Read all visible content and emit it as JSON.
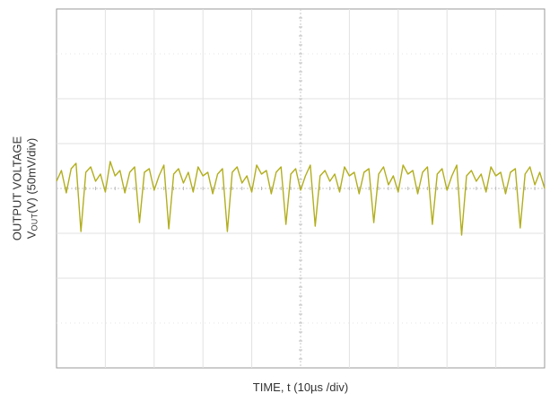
{
  "chart_data": {
    "type": "line",
    "title": "",
    "xlabel": "TIME, t (10µs /div)",
    "ylabel": {
      "line1": "OUTPUT VOLTAGE",
      "line2_prefix": "V",
      "line2_sub": "OUT",
      "line2_suffix": "(V) (50mV/div)"
    },
    "x_divisions": 10,
    "y_divisions": 8,
    "x_unit_per_div": "10µs",
    "y_unit_per_div": "50mV",
    "xlim": [
      0,
      100
    ],
    "ylim": [
      -200,
      200
    ],
    "grid": true,
    "series": [
      {
        "color": "#b2ae1e",
        "x": [
          0,
          1,
          2,
          3,
          4,
          5,
          6,
          7,
          8,
          9,
          10,
          11,
          12,
          13,
          14,
          15,
          16,
          17,
          18,
          19,
          20,
          21,
          22,
          23,
          24,
          25,
          26,
          27,
          28,
          29,
          30,
          31,
          32,
          33,
          34,
          35,
          36,
          37,
          38,
          39,
          40,
          41,
          42,
          43,
          44,
          45,
          46,
          47,
          48,
          49,
          50,
          51,
          52,
          53,
          54,
          55,
          56,
          57,
          58,
          59,
          60,
          61,
          62,
          63,
          64,
          65,
          66,
          67,
          68,
          69,
          70,
          71,
          72,
          73,
          74,
          75,
          76,
          77,
          78,
          79,
          80,
          81,
          82,
          83,
          84,
          85,
          86,
          87,
          88,
          89,
          90,
          91,
          92,
          93,
          94,
          95,
          96,
          97,
          98,
          99,
          100
        ],
        "y": [
          8,
          20,
          -5,
          22,
          28,
          -48,
          18,
          24,
          8,
          16,
          -4,
          30,
          14,
          20,
          -5,
          18,
          24,
          -38,
          18,
          22,
          -2,
          14,
          26,
          -45,
          16,
          22,
          6,
          18,
          -4,
          24,
          14,
          18,
          -6,
          16,
          22,
          -48,
          18,
          24,
          6,
          14,
          -4,
          26,
          16,
          20,
          -6,
          18,
          24,
          -40,
          16,
          22,
          -2,
          14,
          26,
          -42,
          14,
          20,
          8,
          16,
          -4,
          24,
          14,
          18,
          -6,
          18,
          22,
          -38,
          16,
          24,
          4,
          14,
          -4,
          26,
          16,
          20,
          -6,
          18,
          24,
          -40,
          16,
          22,
          -2,
          14,
          26,
          -52,
          14,
          20,
          8,
          16,
          -4,
          24,
          14,
          18,
          -6,
          18,
          22,
          -44,
          16,
          24,
          4,
          18,
          0
        ]
      }
    ]
  }
}
